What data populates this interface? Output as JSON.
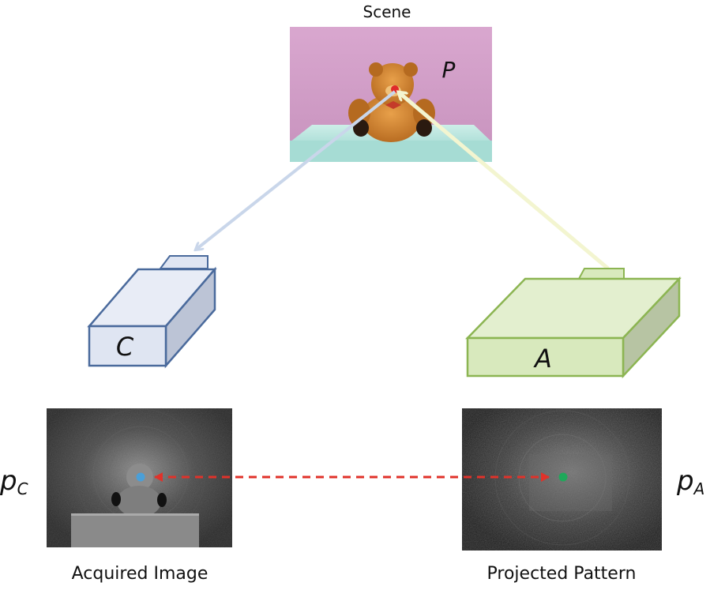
{
  "scene": {
    "title": "Scene",
    "point_label": "P"
  },
  "camera": {
    "label": "C",
    "color": "#4a6a9c",
    "fill": "#dfe5f2"
  },
  "projector": {
    "label": "A",
    "color": "#8cb552",
    "fill": "#d8e9bd"
  },
  "acquired_image": {
    "caption": "Acquired Image",
    "point_label": "p",
    "point_subscript": "C",
    "point_color": "#4a9fd8"
  },
  "projected_pattern": {
    "caption": "Projected Pattern",
    "point_label": "p",
    "point_subscript": "A",
    "point_color": "#1fa85a"
  },
  "correspondence_color": "#e0322a"
}
